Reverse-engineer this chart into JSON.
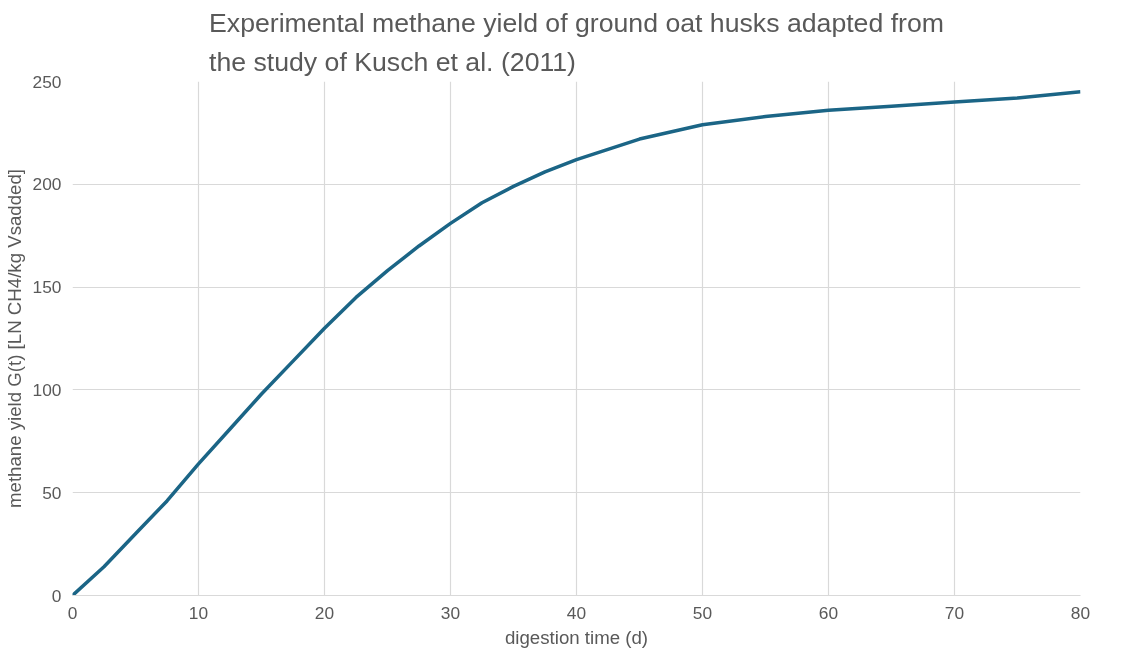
{
  "chart_data": {
    "type": "line",
    "title": "Experimental methane yield of ground oat husks adapted from\nthe study of Kusch et al. (2011)",
    "xlabel": "digestion time (d)",
    "ylabel": "methane yield G(t) [LN CH4/kg Vsadded]",
    "x": [
      0,
      2.5,
      5,
      7.5,
      10,
      12.5,
      15,
      17.5,
      20,
      22.5,
      25,
      27.5,
      30,
      32.5,
      35,
      37.5,
      40,
      45,
      50,
      55,
      60,
      65,
      70,
      75,
      80
    ],
    "series": [
      {
        "color": "#1b6586",
        "values": [
          0,
          14,
          30,
          46,
          64,
          81,
          98,
          114,
          130,
          145,
          158,
          170,
          181,
          191,
          199,
          206,
          212,
          222,
          229,
          233,
          236,
          238,
          240,
          242,
          245
        ]
      }
    ],
    "xlim": [
      0,
      80
    ],
    "xticks": [
      0,
      10,
      20,
      30,
      40,
      50,
      60,
      70,
      80
    ],
    "ylim": [
      0,
      250
    ],
    "yticks": [
      0,
      50,
      100,
      150,
      200,
      250
    ],
    "grid": true,
    "marker": "none",
    "line_style": "solid"
  }
}
